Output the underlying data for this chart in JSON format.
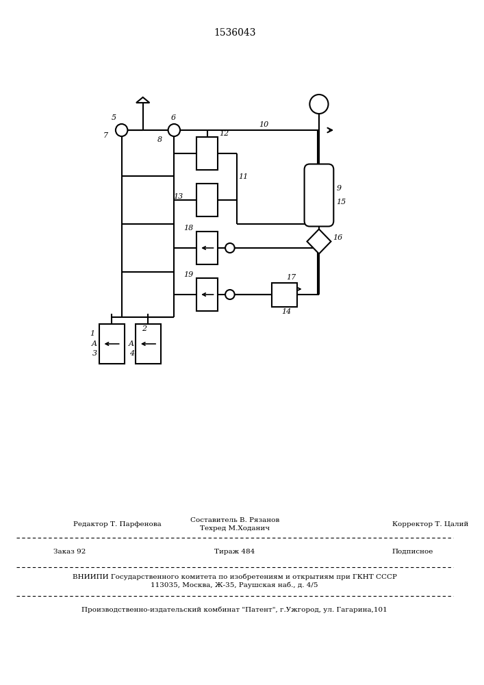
{
  "title": "1536043",
  "bg_color": "#ffffff",
  "line_color": "#000000",
  "text_color": "#000000",
  "footer": {
    "editor": "Редактор Т. Парфенова",
    "composer_label": "Составитель В. Рязанов",
    "techred": "Техред М.Ходанич",
    "corrector": "Корректор Т. Цалий",
    "order": "Заказ 92",
    "tirazh": "Тираж 484",
    "podpisnoe": "Подписное",
    "vniipи": "ВНИИПИ Государственного комитета по изобретениям и открытиям при ГКНТ СССР",
    "address": "113035, Москва, Ж-35, Раушская наб., д. 4/5",
    "publisher": "Производственно-издательский комбинат \"Патент\", г.Ужгород, ул. Гагарина,101"
  }
}
